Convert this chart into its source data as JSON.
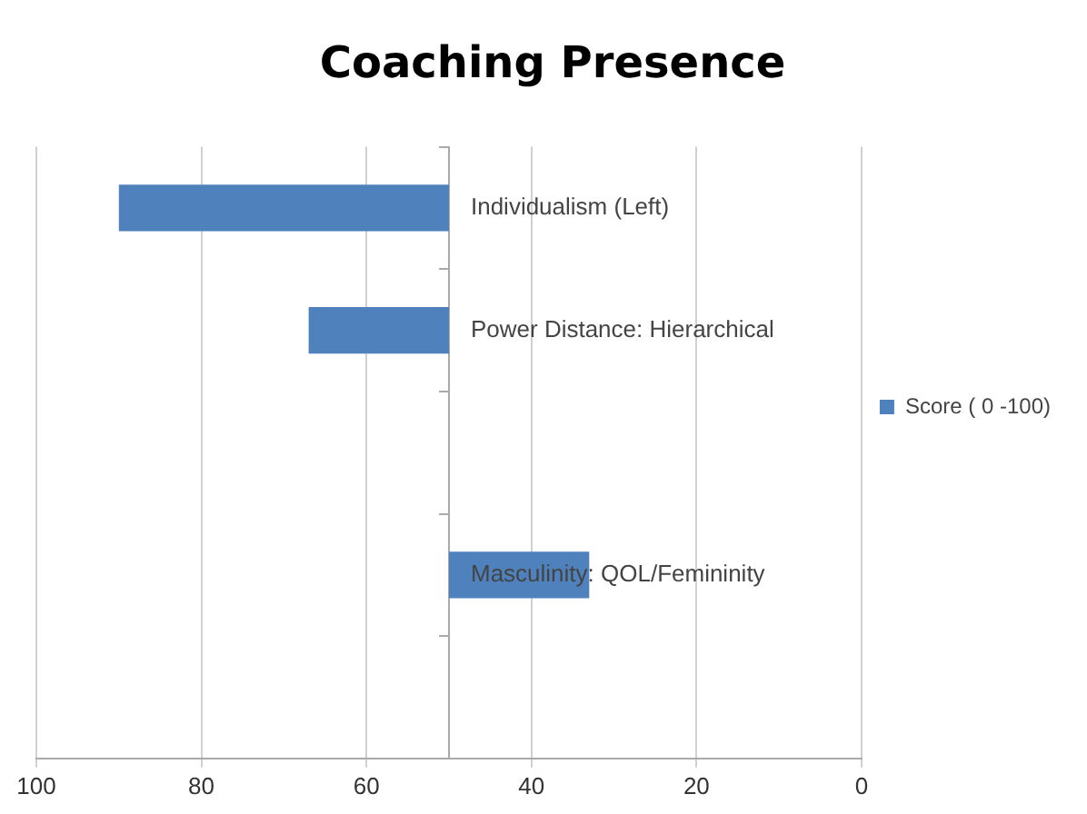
{
  "chart_data": {
    "type": "bar",
    "orientation": "horizontal",
    "title": "Coaching Presence",
    "categories": [
      "Individualism (Left)",
      "Power Distance: Hierarchical",
      null,
      "Masculinity: QOL/Femininity",
      null
    ],
    "series": [
      {
        "name": "Score ( 0 -100)",
        "color": "#4f81bd",
        "values": [
          40,
          17,
          null,
          -17,
          null
        ],
        "base": [
          50,
          50,
          null,
          50,
          null
        ]
      }
    ],
    "xlim": [
      100,
      0
    ],
    "xticks": [
      100,
      80,
      60,
      40,
      20,
      0
    ],
    "grid": "x",
    "legend": "right"
  }
}
